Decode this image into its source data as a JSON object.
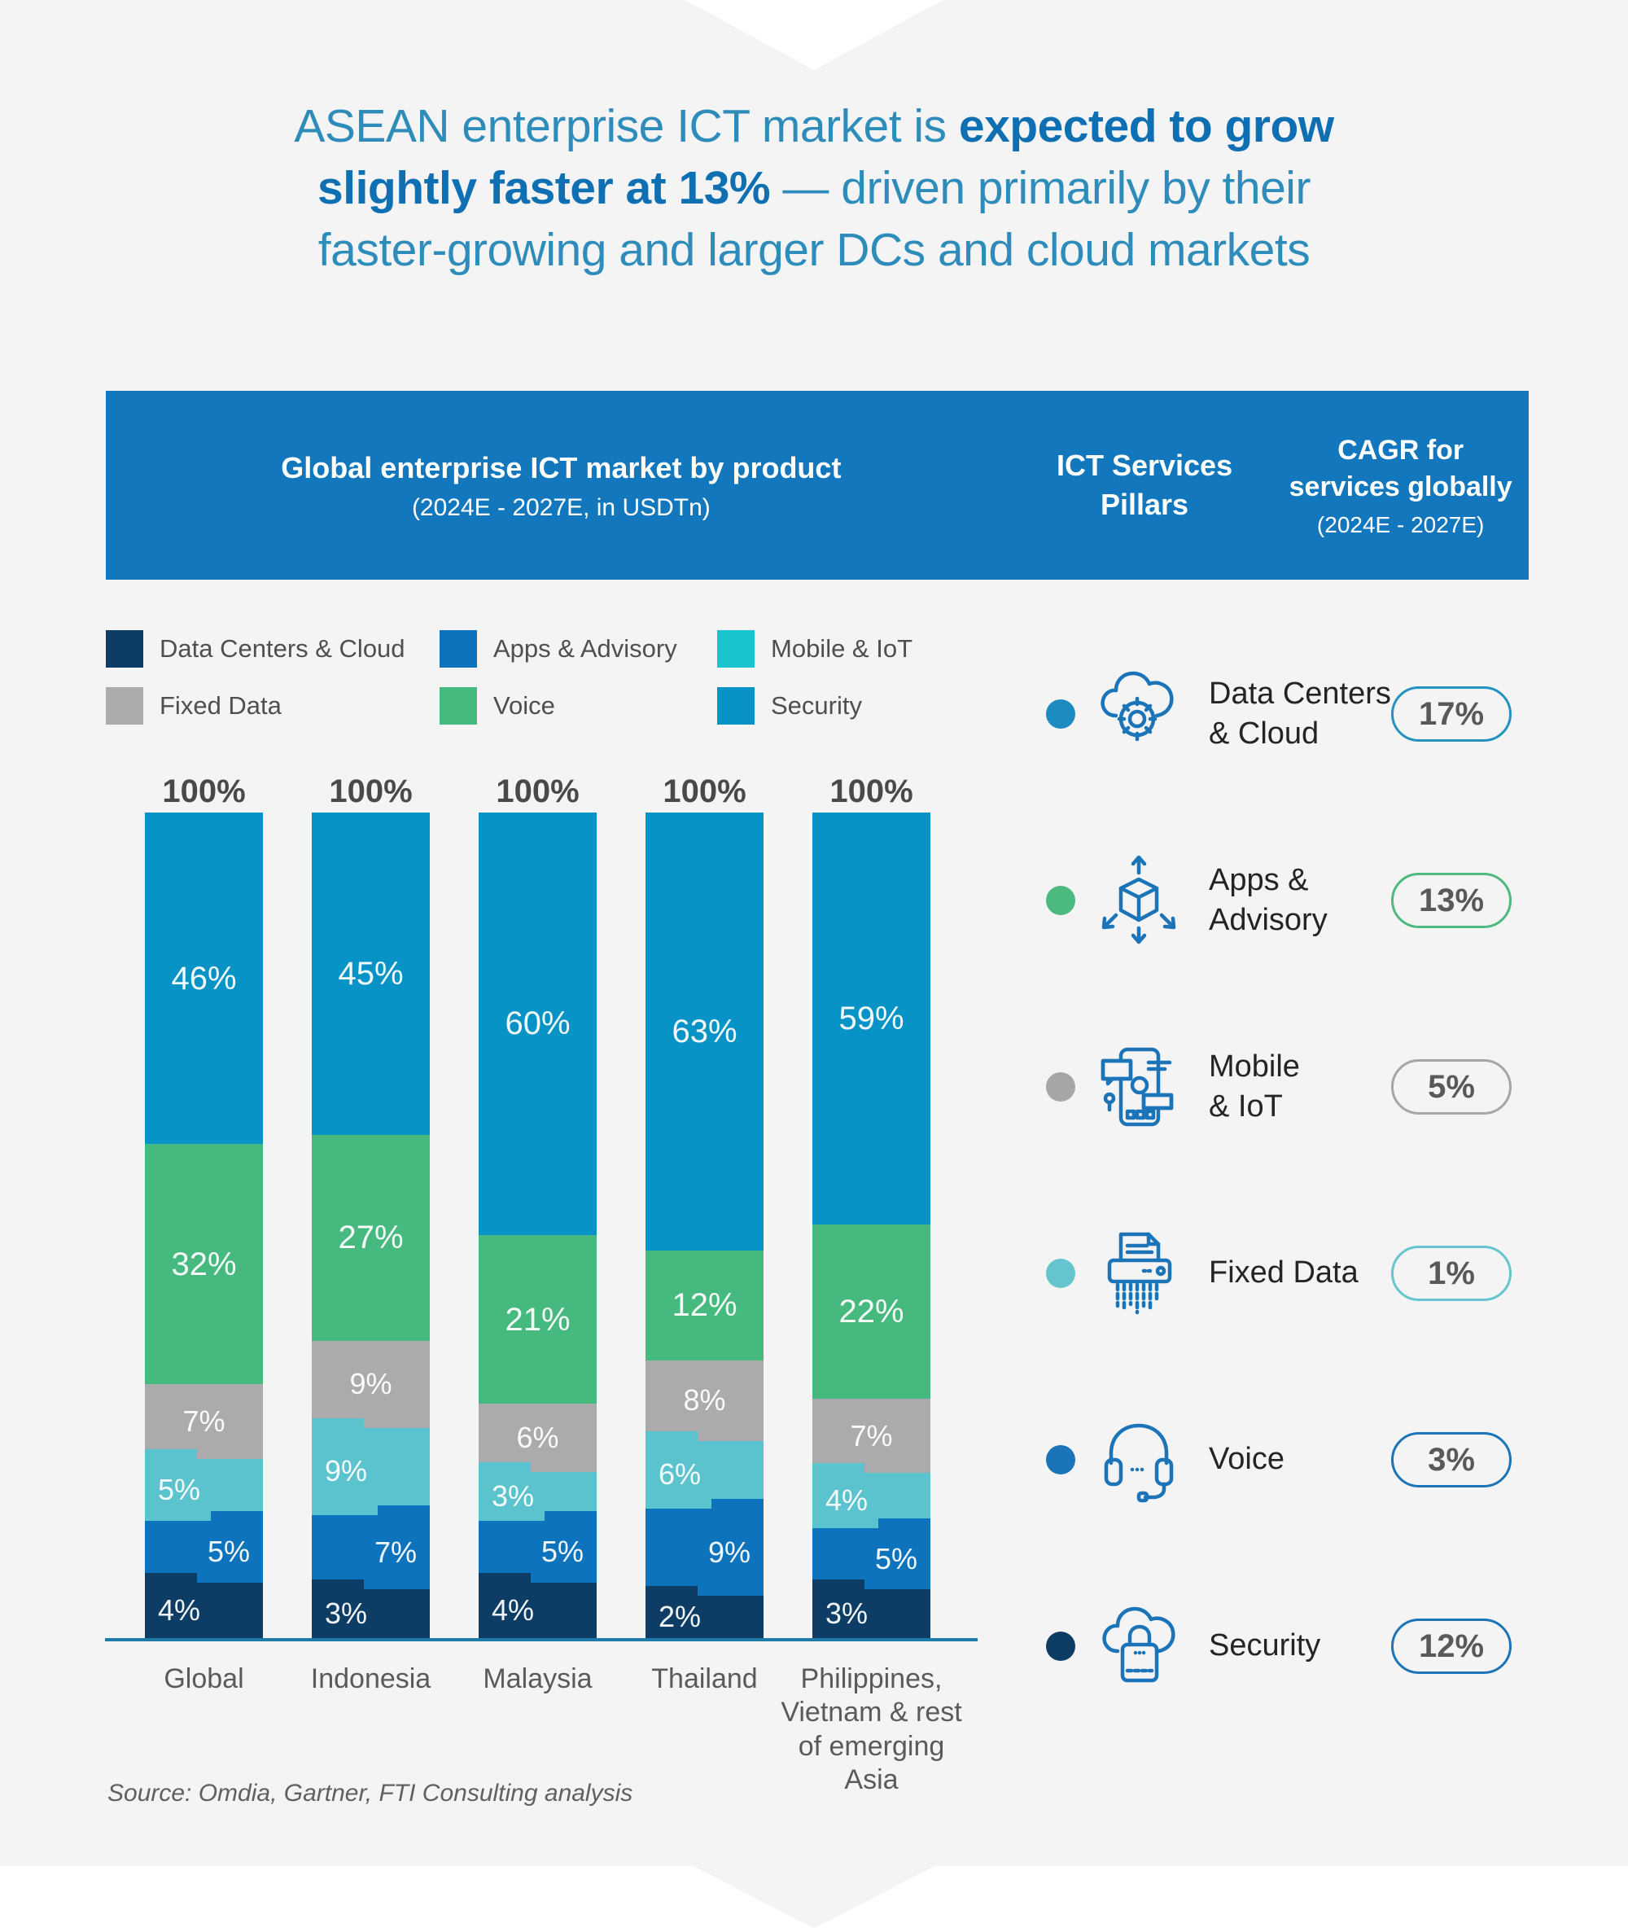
{
  "page": {
    "background": "#F4F4F5"
  },
  "title_lines": [
    [
      {
        "text": "ASEAN enterprise ICT market is ",
        "bold": false
      },
      {
        "text": "expected to grow",
        "bold": true
      }
    ],
    [
      {
        "text": "slightly faster at 13%",
        "bold": true
      },
      {
        "text": " — driven primarily by their",
        "bold": false
      }
    ],
    [
      {
        "text": "faster-growing and larger DCs and cloud markets",
        "bold": false
      }
    ]
  ],
  "header": {
    "background": "#1377BE",
    "col1": {
      "lines": [
        "Global enterprise ICT market by product"
      ],
      "sub": "(2024E - 2027E, in USDTn)"
    },
    "col2": {
      "lines": [
        "ICT Services",
        "Pillars"
      ],
      "sub": ""
    },
    "col3": {
      "lines": [
        "CAGR for",
        "services globally"
      ],
      "sub": "(2024E - 2027E)"
    }
  },
  "legend": {
    "items": [
      {
        "label": "Data Centers & Cloud",
        "color": "#0D3C64"
      },
      {
        "label": "Apps & Advisory",
        "color": "#0E73BD"
      },
      {
        "label": "Mobile & IoT",
        "color": "#18C5CE"
      },
      {
        "label": "Fixed Data",
        "color": "#ABABAD"
      },
      {
        "label": "Voice",
        "color": "#46B97E"
      },
      {
        "label": "Security",
        "color": "#0793C6"
      }
    ]
  },
  "chart_data": {
    "type": "bar",
    "stacked": true,
    "unit": "%",
    "grid": false,
    "ylim": [
      0,
      100
    ],
    "bar_total_label": "100%",
    "categories": [
      [
        "Global"
      ],
      [
        "Indonesia"
      ],
      [
        "Malaysia"
      ],
      [
        "Thailand"
      ],
      [
        "Philippines,",
        "Vietnam & rest",
        "of emerging Asia"
      ]
    ],
    "series": [
      {
        "name": "Data Centers & Cloud",
        "color": "#0D3C64",
        "label_align": "left",
        "step_side": "left",
        "values": [
          4,
          3,
          4,
          2,
          3
        ]
      },
      {
        "name": "Apps & Advisory",
        "color": "#0E73BD",
        "label_align": "right",
        "step_side": "right",
        "values": [
          5,
          7,
          5,
          9,
          5
        ]
      },
      {
        "name": "Mobile & IoT",
        "color": "#5BC3CE",
        "label_align": "left",
        "step_side": "left",
        "values": [
          5,
          9,
          3,
          6,
          4
        ]
      },
      {
        "name": "Fixed Data",
        "color": "#ABABAD",
        "label_align": "center",
        "step_side": "none",
        "values": [
          7,
          9,
          6,
          8,
          7
        ]
      },
      {
        "name": "Voice",
        "color": "#46B97E",
        "label_align": "center",
        "step_side": "none",
        "values": [
          32,
          27,
          21,
          12,
          22
        ]
      },
      {
        "name": "Security",
        "color": "#0793C6",
        "label_align": "center",
        "step_side": "none",
        "values": [
          46,
          45,
          60,
          63,
          59
        ]
      }
    ]
  },
  "pillars": {
    "rows": [
      {
        "label_lines": [
          "Data Centers",
          "& Cloud"
        ],
        "cagr": "17%",
        "dot_color": "#1E8BC0",
        "pill_border": "#2492BF",
        "icon": "cloud-gear"
      },
      {
        "label_lines": [
          "Apps &",
          "Advisory"
        ],
        "cagr": "13%",
        "dot_color": "#4CB97E",
        "pill_border": "#4CB97E",
        "icon": "cube-arrows"
      },
      {
        "label_lines": [
          "Mobile",
          "& IoT"
        ],
        "cagr": "5%",
        "dot_color": "#A5A6A8",
        "pill_border": "#A5A6A8",
        "icon": "mobile-iot"
      },
      {
        "label_lines": [
          "Fixed Data"
        ],
        "cagr": "1%",
        "dot_color": "#64C5CE",
        "pill_border": "#64C5CE",
        "icon": "shredder"
      },
      {
        "label_lines": [
          "Voice"
        ],
        "cagr": "3%",
        "dot_color": "#1B74B8",
        "pill_border": "#1B74B8",
        "icon": "headset"
      },
      {
        "label_lines": [
          "Security"
        ],
        "cagr": "12%",
        "dot_color": "#0D3C64",
        "pill_border": "#1B74B8",
        "icon": "cloud-lock"
      }
    ]
  },
  "source": "Source: Omdia, Gartner, FTI Consulting analysis"
}
